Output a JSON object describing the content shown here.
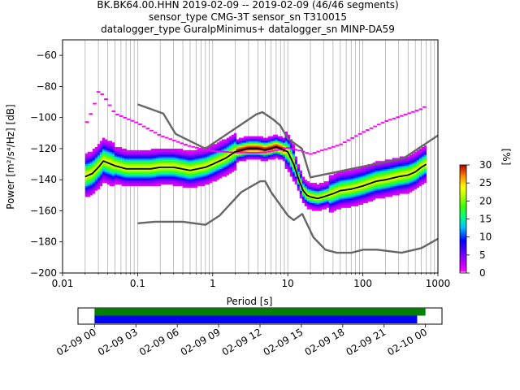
{
  "title_lines": [
    "BK.BK64.00.HHN   2019-02-09 -- 2019-02-09  (46/46 segments)",
    "sensor_type CMG-3T sensor_sn T310015",
    "datalogger_type GuralpMinimus+ datalogger_sn MINP-DA59"
  ],
  "chart_data": [
    {
      "type": "heatmap",
      "title": "BK.BK64.00.HHN   2019-02-09 -- 2019-02-09  (46/46 segments)",
      "xlabel": "Period [s]",
      "ylabel": "Power [m²/s⁴/Hz] [dB]",
      "xscale": "log",
      "xlim": [
        0.01,
        1000
      ],
      "ylim": [
        -200,
        -50
      ],
      "x_ticks": [
        0.01,
        0.1,
        1,
        10,
        100,
        1000
      ],
      "x_tick_labels": [
        "0.01",
        "0.1",
        "1",
        "10",
        "100",
        "1000"
      ],
      "y_ticks": [
        -200,
        -180,
        -160,
        -140,
        -120,
        -100,
        -80,
        -60
      ],
      "y_tick_labels": [
        "−200",
        "−180",
        "−160",
        "−140",
        "−120",
        "−100",
        "−80",
        "−60"
      ],
      "grid": "vertical log grid",
      "colorbar": {
        "label": "[%]",
        "range": [
          0,
          30
        ],
        "ticks": [
          0,
          5,
          10,
          15,
          20,
          25,
          30
        ],
        "tick_labels": [
          "0",
          "5",
          "10",
          "15",
          "20",
          "25",
          "30"
        ]
      },
      "mode_curve": {
        "periods": [
          0.02,
          0.025,
          0.03,
          0.035,
          0.05,
          0.07,
          0.1,
          0.15,
          0.2,
          0.3,
          0.5,
          0.8,
          1,
          1.5,
          2,
          3,
          4,
          5,
          6,
          7,
          8,
          10,
          12,
          14,
          16,
          18,
          20,
          25,
          30,
          40,
          50,
          70,
          100,
          150,
          200,
          300,
          400,
          500,
          600,
          700
        ],
        "power": [
          -138,
          -136,
          -132,
          -128,
          -131,
          -133,
          -133,
          -133,
          -132,
          -132,
          -134,
          -132,
          -130,
          -126,
          -122,
          -120,
          -120,
          -121,
          -120,
          -119,
          -120,
          -122,
          -130,
          -140,
          -147,
          -150,
          -151,
          -152,
          -151,
          -149,
          -147,
          -146,
          -144,
          -141,
          -140,
          -138,
          -137,
          -135,
          -132,
          -130
        ]
      },
      "nlnm": {
        "periods": [
          0.1,
          0.17,
          0.4,
          0.8,
          1.24,
          2.4,
          4.3,
          5,
          6,
          10,
          12,
          15.6,
          21.9,
          31.6,
          45,
          70,
          101,
          154,
          328,
          600,
          1000
        ],
        "power": [
          -168,
          -167,
          -167,
          -169,
          -163,
          -148,
          -141,
          -141,
          -148,
          -163,
          -166,
          -162,
          -177,
          -185,
          -187,
          -187,
          -185,
          -185,
          -187,
          -184,
          -178
        ]
      },
      "nhnm": {
        "periods": [
          0.1,
          0.22,
          0.32,
          0.8,
          3.8,
          4.6,
          6.3,
          7.9,
          10,
          15.4,
          20,
          354.8,
          1000
        ],
        "power": [
          -91.5,
          -97.4,
          -110.5,
          -120,
          -98,
          -96.5,
          -101,
          -105,
          -113.5,
          -120,
          -138.5,
          -126,
          -111.5
        ]
      },
      "outlier_upper_curve": {
        "periods": [
          0.02,
          0.025,
          0.03,
          0.035,
          0.05,
          0.1,
          0.2,
          0.5,
          1,
          2,
          5,
          10,
          15,
          20,
          50,
          100,
          200,
          400,
          600,
          700
        ],
        "power": [
          -106,
          -96,
          -84,
          -86,
          -98,
          -104,
          -112,
          -119,
          -122,
          -123,
          -123,
          -120,
          -122,
          -124,
          -118,
          -110,
          -103,
          -98,
          -95,
          -93
        ]
      }
    },
    {
      "type": "timeline",
      "x_tick_labels": [
        "02-09 00",
        "02-09 03",
        "02-09 06",
        "02-09 09",
        "02-09 12",
        "02-09 15",
        "02-09 18",
        "02-09 21",
        "02-10 00"
      ],
      "x_range_hours": [
        -1.2,
        25.2
      ],
      "bars": [
        {
          "color": "#008000",
          "start_hour": 0,
          "end_hour": 24.0
        },
        {
          "color": "#0000ff",
          "start_hour": 0,
          "end_hour": 23.4
        }
      ]
    }
  ],
  "colors": {
    "mode": "#000000",
    "noise_model": "#666666",
    "grid": "#b0b0b0"
  }
}
